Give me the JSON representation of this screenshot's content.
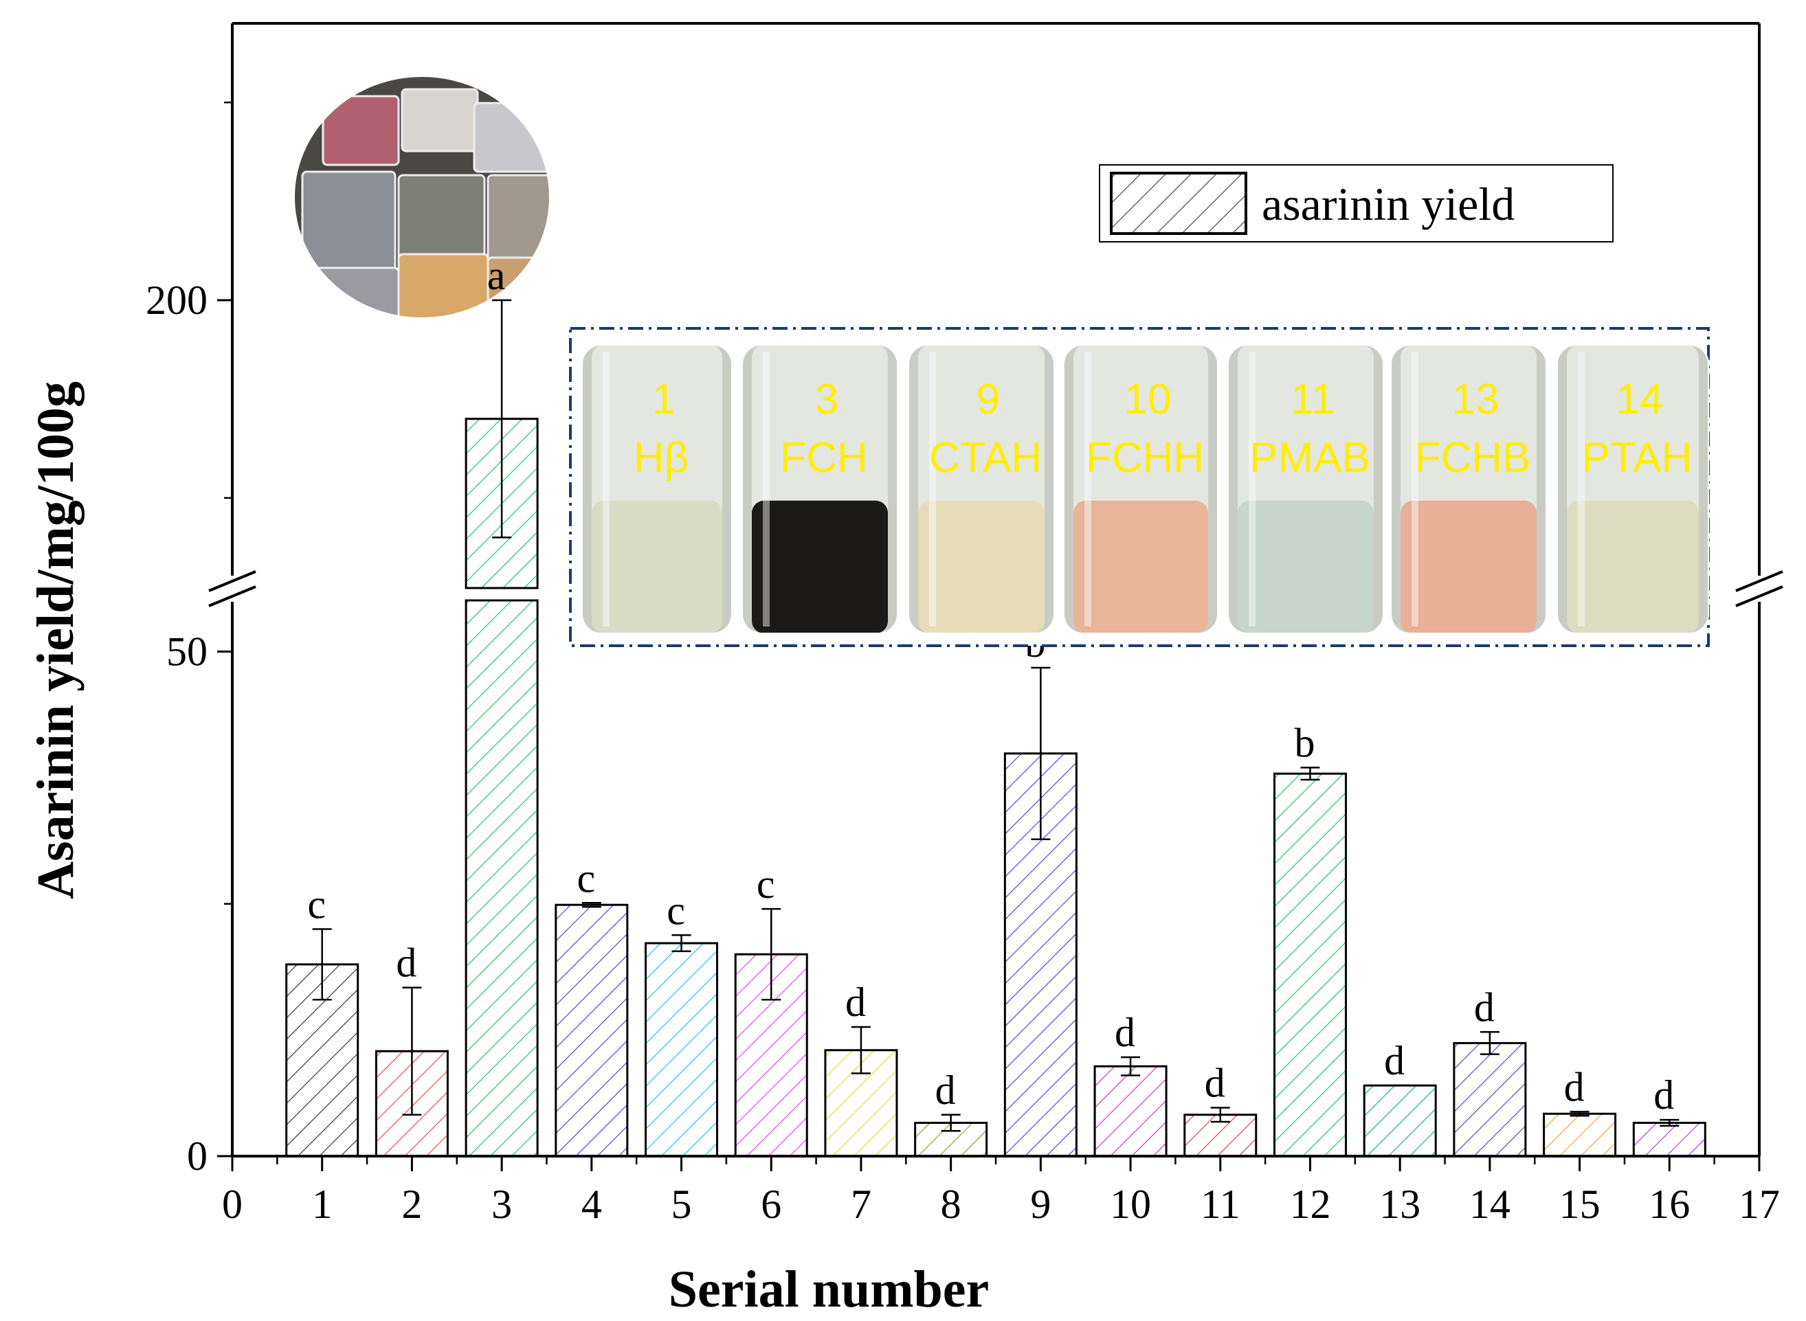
{
  "chart_data": {
    "type": "bar",
    "xlabel": "Serial number",
    "ylabel": "Asarinin yield/mg/100g",
    "xlim": [
      0,
      17
    ],
    "x_ticks": [
      "0",
      "1",
      "2",
      "3",
      "4",
      "5",
      "6",
      "7",
      "8",
      "9",
      "10",
      "11",
      "12",
      "13",
      "14",
      "15",
      "16",
      "17"
    ],
    "y_lower_range": [
      0,
      55
    ],
    "y_upper_range": [
      165,
      235
    ],
    "y_ticks": [
      {
        "value": 0,
        "label": "0"
      },
      {
        "value": 50,
        "label": "50"
      },
      {
        "value": 200,
        "label": "200"
      }
    ],
    "axis_break": true,
    "legend": {
      "label": "asarinin yield",
      "position": "top-right"
    },
    "categories": [
      "1",
      "2",
      "3",
      "4",
      "5",
      "6",
      "7",
      "8",
      "9",
      "10",
      "11",
      "12",
      "13",
      "14",
      "15",
      "16"
    ],
    "values": [
      19.0,
      10.4,
      185.0,
      24.9,
      21.1,
      20.0,
      10.5,
      3.3,
      39.9,
      8.9,
      4.1,
      37.9,
      7.0,
      11.2,
      4.2,
      3.3
    ],
    "errors": [
      3.5,
      6.3,
      15.0,
      0.2,
      0.8,
      4.5,
      2.3,
      0.8,
      8.5,
      0.9,
      0.7,
      0.6,
      0.0,
      1.1,
      0.2,
      0.3
    ],
    "significance_letters": [
      "c",
      "d",
      "a",
      "c",
      "c",
      "c",
      "d",
      "d",
      "b",
      "d",
      "d",
      "b",
      "d",
      "d",
      "d",
      "d"
    ],
    "bar_colors": [
      "#333333",
      "#ee4b4b",
      "#22c46a",
      "#4a4ac8",
      "#1ec6e6",
      "#e04ae6",
      "#e6dc2a",
      "#9a9a3c",
      "#4a4ac8",
      "#c23cc2",
      "#c84a4a",
      "#22c46a",
      "#1aa8a0",
      "#4a4ac8",
      "#f0a04a",
      "#b43ce6"
    ],
    "inset_tubes": [
      {
        "num": "1",
        "name": "Hβ",
        "liquid": "#d8dcc4"
      },
      {
        "num": "3",
        "name": "FCH",
        "liquid": "#1c1a18"
      },
      {
        "num": "9",
        "name": "CTAH",
        "liquid": "#e6dcb8"
      },
      {
        "num": "10",
        "name": "FCHH",
        "liquid": "#e8b49a"
      },
      {
        "num": "11",
        "name": "PMAB",
        "liquid": "#c8d4cc"
      },
      {
        "num": "13",
        "name": "FCHB",
        "liquid": "#e8b096"
      },
      {
        "num": "14",
        "name": "PTAH",
        "liquid": "#dcdcc0"
      }
    ],
    "inset_label_color": "#ffee00",
    "inset_border_color": "#1e3a6e"
  }
}
